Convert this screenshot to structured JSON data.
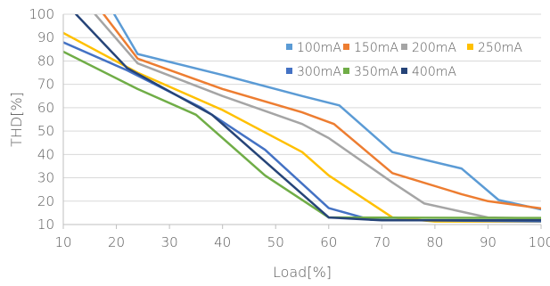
{
  "chart_data": {
    "type": "line",
    "title": "",
    "xlabel": "Load[%]",
    "ylabel": "THD[%]",
    "xlim": [
      10,
      100
    ],
    "ylim": [
      10,
      100
    ],
    "xticks": [
      10,
      20,
      30,
      40,
      50,
      60,
      70,
      80,
      90,
      100
    ],
    "yticks": [
      10,
      20,
      30,
      40,
      50,
      60,
      70,
      80,
      90,
      100
    ],
    "grid": "horizontal",
    "legend": "upper-right",
    "series": [
      {
        "name": "100mA",
        "color": "#5B9BD5",
        "x": [
          19.6,
          24,
          40,
          55,
          62,
          72,
          85,
          92,
          100
        ],
        "y": [
          100,
          83,
          74,
          65,
          61,
          41,
          34,
          20.5,
          16.5
        ]
      },
      {
        "name": "150mA",
        "color": "#ED7D31",
        "x": [
          17.6,
          24,
          40,
          55,
          61,
          72,
          85,
          90,
          101.4
        ],
        "y": [
          100,
          81,
          68,
          58,
          53,
          32,
          23,
          20,
          16.5
        ]
      },
      {
        "name": "200mA",
        "color": "#A5A5A5",
        "x": [
          16,
          24,
          40,
          55,
          60,
          72,
          78,
          90,
          101.4
        ],
        "y": [
          100,
          79,
          65,
          53,
          47,
          28,
          19,
          13,
          12.5
        ]
      },
      {
        "name": "250mA",
        "color": "#FFC000",
        "x": [
          10,
          24,
          40,
          55,
          60,
          72,
          80,
          101.4
        ],
        "y": [
          92,
          75,
          59,
          41,
          31,
          13,
          11.3,
          11.3
        ]
      },
      {
        "name": "300mA",
        "color": "#4472C4",
        "x": [
          10,
          22,
          36,
          48,
          60,
          68,
          101.4
        ],
        "y": [
          88,
          76,
          60,
          42,
          17,
          12,
          11.3
        ]
      },
      {
        "name": "350mA",
        "color": "#70AD47",
        "x": [
          10,
          24,
          35,
          48,
          60,
          101.4
        ],
        "y": [
          84,
          68,
          57,
          31,
          13,
          12.8
        ]
      },
      {
        "name": "400mA",
        "color": "#264478",
        "x": [
          12.4,
          22,
          38,
          50,
          60,
          70,
          101.4
        ],
        "y": [
          100,
          77,
          57,
          33,
          13,
          11.8,
          11.8
        ]
      }
    ]
  }
}
